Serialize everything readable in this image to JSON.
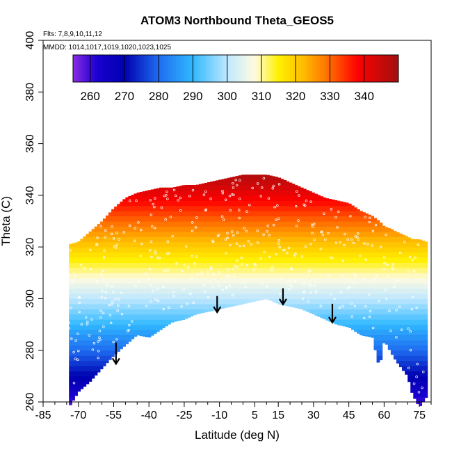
{
  "chart_data": {
    "type": "heatmap",
    "title": "ATOM3 Northbound Theta_GEOS5",
    "annotations": {
      "flights": "Flts: 7,8,9,10,11,12",
      "dates": "MMDD: 1014,1017,1019,1020,1023,1025"
    },
    "xlabel": "Latitude (deg N)",
    "ylabel": "Theta (C)",
    "xlim": [
      -85,
      80
    ],
    "ylim": [
      260,
      400
    ],
    "x_ticks": [
      -85,
      -70,
      -55,
      -40,
      -25,
      -10,
      5,
      15,
      30,
      45,
      60,
      75
    ],
    "x_tick_labels": [
      "-85",
      "-70",
      "-55",
      "-40",
      "-25",
      "-10",
      "5",
      "15",
      "30",
      "45",
      "60",
      "75"
    ],
    "y_ticks": [
      260,
      280,
      300,
      320,
      340,
      360,
      380,
      400
    ],
    "y_tick_labels": [
      "260",
      "280",
      "300",
      "320",
      "340",
      "360",
      "380",
      "400"
    ],
    "colorbar": {
      "min": 255,
      "max": 350,
      "ticks": [
        260,
        270,
        280,
        290,
        300,
        310,
        320,
        330,
        340
      ],
      "tick_labels": [
        "260",
        "270",
        "280",
        "290",
        "300",
        "310",
        "320",
        "330",
        "340"
      ],
      "color_stops": [
        {
          "value": 255,
          "color": "#8a2be2"
        },
        {
          "value": 262,
          "color": "#1a00d0"
        },
        {
          "value": 270,
          "color": "#0000b0"
        },
        {
          "value": 280,
          "color": "#1e6cf0"
        },
        {
          "value": 290,
          "color": "#30b8ff"
        },
        {
          "value": 300,
          "color": "#bfe8ff"
        },
        {
          "value": 308,
          "color": "#fffbe0"
        },
        {
          "value": 315,
          "color": "#fff000"
        },
        {
          "value": 322,
          "color": "#ffbe00"
        },
        {
          "value": 330,
          "color": "#ff6a00"
        },
        {
          "value": 338,
          "color": "#ff0000"
        },
        {
          "value": 350,
          "color": "#a01010"
        }
      ]
    },
    "envelope": {
      "latitude": [
        -74,
        -70,
        -65,
        -60,
        -55,
        -50,
        -45,
        -40,
        -35,
        -30,
        -25,
        -20,
        -15,
        -10,
        -5,
        0,
        5,
        10,
        15,
        20,
        25,
        30,
        35,
        40,
        45,
        50,
        55,
        58,
        60,
        63,
        65,
        70,
        72,
        75,
        78
      ],
      "theta_top": [
        321,
        322,
        326,
        330,
        335,
        339,
        341,
        342,
        343,
        343,
        344,
        344,
        345,
        346,
        347,
        348,
        348,
        348,
        347,
        345,
        343,
        341,
        339,
        338,
        337,
        334,
        332,
        330,
        328,
        327,
        326,
        324,
        323,
        323,
        322
      ],
      "theta_bottom": [
        258,
        264,
        268,
        273,
        278,
        282,
        286,
        285,
        288,
        291,
        292,
        294,
        295,
        296,
        297,
        298,
        299,
        300,
        298,
        297,
        296,
        294,
        292,
        290,
        289,
        286,
        285,
        273,
        284,
        279,
        276,
        270,
        263,
        258,
        262
      ]
    },
    "arrows": [
      {
        "latitude": -54,
        "theta_from": 283,
        "theta_to": 275
      },
      {
        "latitude": -11,
        "theta_from": 301,
        "theta_to": 295
      },
      {
        "latitude": 17,
        "theta_from": 304,
        "theta_to": 298
      },
      {
        "latitude": 38,
        "theta_from": 298,
        "theta_to": 291
      }
    ],
    "grid": false,
    "legend": "colorbar-top"
  }
}
